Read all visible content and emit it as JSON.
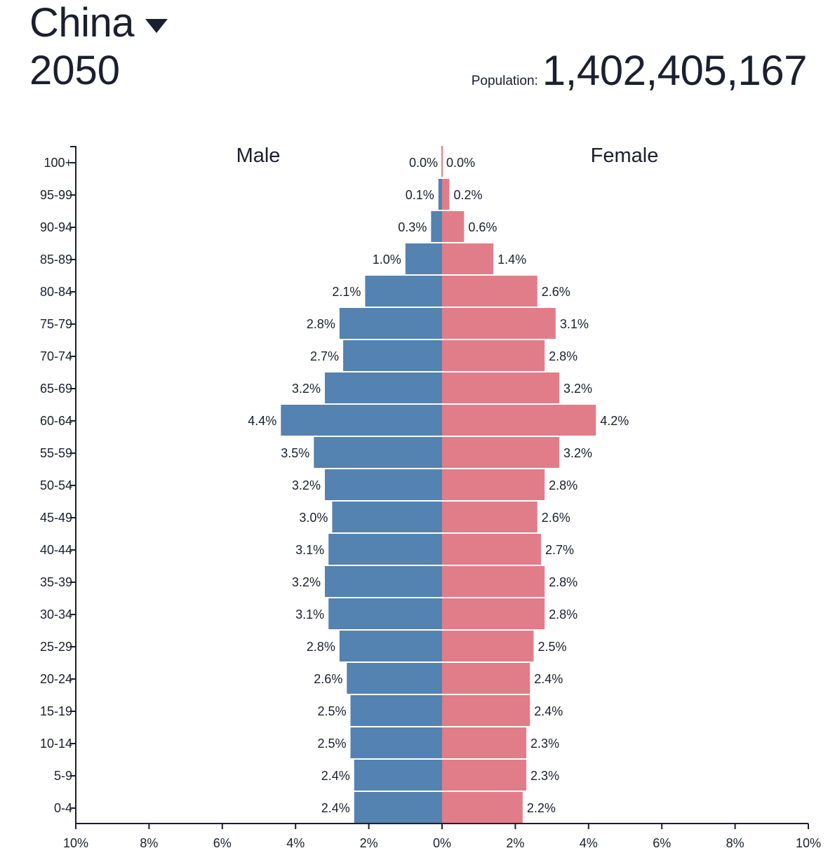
{
  "header": {
    "country": "China",
    "year": "2050",
    "population_label": "Population:",
    "population_value": "1,402,405,167"
  },
  "colors": {
    "male": "#5482b1",
    "female": "#e07d89",
    "text": "#1b1f2e"
  },
  "chart_data": {
    "type": "bar",
    "orientation": "horizontal-pyramid",
    "categories": [
      "100+",
      "95-99",
      "90-94",
      "85-89",
      "80-84",
      "75-79",
      "70-74",
      "65-69",
      "60-64",
      "55-59",
      "50-54",
      "45-49",
      "40-44",
      "35-39",
      "30-34",
      "25-29",
      "20-24",
      "15-19",
      "10-14",
      "5-9",
      "0-4"
    ],
    "series": [
      {
        "name": "Male",
        "values": [
          0.0,
          0.1,
          0.3,
          1.0,
          2.1,
          2.8,
          2.7,
          3.2,
          4.4,
          3.5,
          3.2,
          3.0,
          3.1,
          3.2,
          3.1,
          2.8,
          2.6,
          2.5,
          2.5,
          2.4,
          2.4
        ],
        "labels": [
          "0.0%",
          "0.1%",
          "0.3%",
          "1.0%",
          "2.1%",
          "2.8%",
          "2.7%",
          "3.2%",
          "4.4%",
          "3.5%",
          "3.2%",
          "3.0%",
          "3.1%",
          "3.2%",
          "3.1%",
          "2.8%",
          "2.6%",
          "2.5%",
          "2.5%",
          "2.4%",
          "2.4%"
        ]
      },
      {
        "name": "Female",
        "values": [
          0.0,
          0.2,
          0.6,
          1.4,
          2.6,
          3.1,
          2.8,
          3.2,
          4.2,
          3.2,
          2.8,
          2.6,
          2.7,
          2.8,
          2.8,
          2.5,
          2.4,
          2.4,
          2.3,
          2.3,
          2.2
        ],
        "labels": [
          "0.0%",
          "0.2%",
          "0.6%",
          "1.4%",
          "2.6%",
          "3.1%",
          "2.8%",
          "3.2%",
          "4.2%",
          "3.2%",
          "2.8%",
          "2.6%",
          "2.7%",
          "2.8%",
          "2.8%",
          "2.5%",
          "2.4%",
          "2.4%",
          "2.3%",
          "2.3%",
          "2.2%"
        ]
      }
    ],
    "x_ticks": [
      "10%",
      "8%",
      "6%",
      "4%",
      "2%",
      "0%",
      "2%",
      "4%",
      "6%",
      "8%",
      "10%"
    ],
    "xlim": [
      -10,
      10
    ],
    "xlabel": "",
    "ylabel": ""
  }
}
